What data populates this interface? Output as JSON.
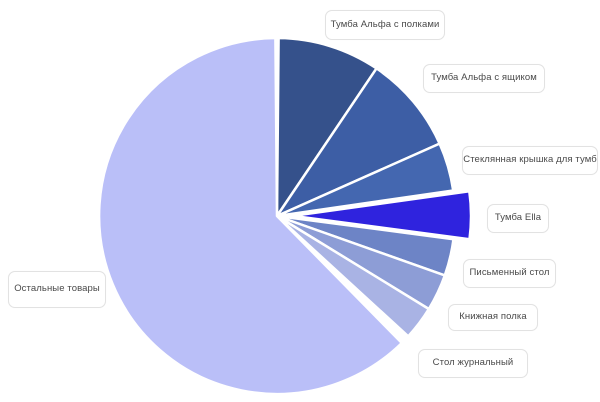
{
  "chart_data": {
    "type": "pie",
    "title": "",
    "legend_position": "none",
    "grid": false,
    "total_slices": 8,
    "categories": [
      "Тумба Альфа с полками",
      "Тумба Альфа с ящиком",
      "Стеклянная крышка для тумб",
      "Тумба Ella",
      "Письменный стол",
      "Книжная полка",
      "Стол журнальный",
      "Остальные товары"
    ],
    "values_pct": [
      9.3,
      8.9,
      4.4,
      4.3,
      3.3,
      3.3,
      3.1,
      63.4
    ],
    "slices": [
      {
        "label": "Тумба Альфа с полками",
        "share_pct": 9.3,
        "start_angle": 0.5,
        "end_angle": 34,
        "color": "#35518b",
        "exploded": false
      },
      {
        "label": "Тумба Альфа с ящиком",
        "share_pct": 8.9,
        "start_angle": 34,
        "end_angle": 66,
        "color": "#3d5ea5",
        "exploded": false
      },
      {
        "label": "Стеклянная крышка для тумб",
        "share_pct": 4.4,
        "start_angle": 66,
        "end_angle": 81.75,
        "color": "#4467b0",
        "exploded": false
      },
      {
        "label": "Тумба Ella",
        "share_pct": 4.3,
        "start_angle": 82,
        "end_angle": 97.5,
        "color": "#2f23de",
        "exploded": true
      },
      {
        "label": "Письменный стол",
        "share_pct": 3.3,
        "start_angle": 97.5,
        "end_angle": 109.5,
        "color": "#6d84c6",
        "exploded": false
      },
      {
        "label": "Книжная полка",
        "share_pct": 3.3,
        "start_angle": 109.5,
        "end_angle": 121.5,
        "color": "#8d9dd6",
        "exploded": false
      },
      {
        "label": "Стол журнальный",
        "share_pct": 3.1,
        "start_angle": 121.5,
        "end_angle": 132.5,
        "color": "#a9b3e4",
        "exploded": false
      },
      {
        "label": "Остальные товары",
        "share_pct": 63.4,
        "start_angle": 135.5,
        "end_angle": 359.5,
        "color": "#babff8",
        "exploded": false
      }
    ]
  }
}
